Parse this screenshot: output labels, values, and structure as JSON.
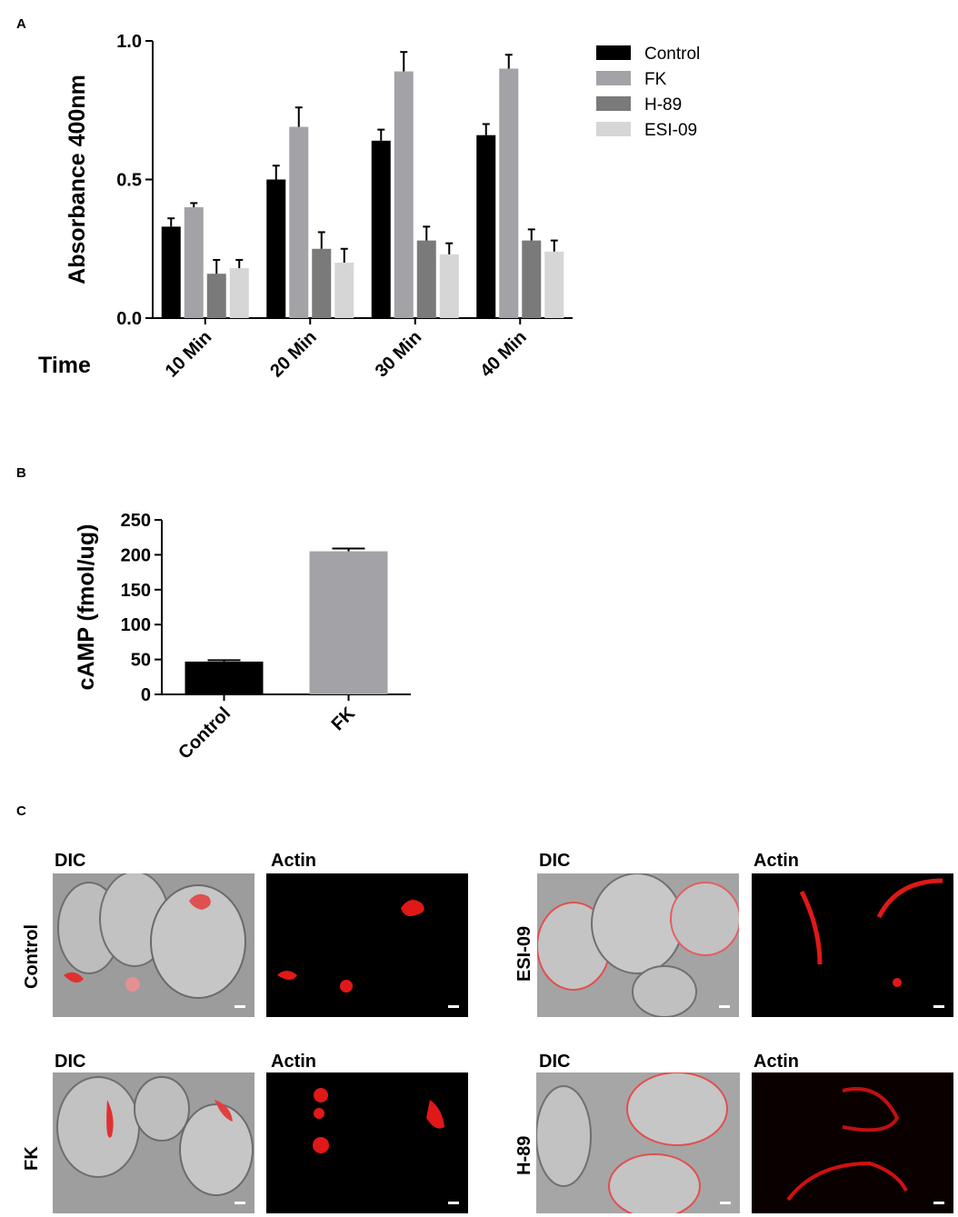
{
  "panels": {
    "a": "A",
    "b": "B",
    "c": "C"
  },
  "chart_data": [
    {
      "type": "bar",
      "panel": "A",
      "ylabel": "Absorbance 400nm",
      "xlabel": "Time",
      "categories": [
        "10 Min",
        "20 Min",
        "30 Min",
        "40 Min"
      ],
      "ylim": [
        0,
        1.0
      ],
      "yticks": [
        "0.0",
        "0.5",
        "1.0"
      ],
      "legend_position": "top-right",
      "series": [
        {
          "name": "Control",
          "color": "#000000",
          "values": [
            0.33,
            0.5,
            0.64,
            0.66
          ],
          "errors": [
            0.03,
            0.05,
            0.04,
            0.04
          ]
        },
        {
          "name": "FK",
          "color": "#a3a3a7",
          "values": [
            0.4,
            0.69,
            0.89,
            0.9
          ],
          "errors": [
            0.015,
            0.07,
            0.07,
            0.05
          ]
        },
        {
          "name": "H-89",
          "color": "#7a7a7a",
          "values": [
            0.16,
            0.25,
            0.28,
            0.28
          ],
          "errors": [
            0.05,
            0.06,
            0.05,
            0.04
          ]
        },
        {
          "name": "ESI-09",
          "color": "#d6d6d6",
          "values": [
            0.18,
            0.2,
            0.23,
            0.24
          ],
          "errors": [
            0.03,
            0.05,
            0.04,
            0.04
          ]
        }
      ]
    },
    {
      "type": "bar",
      "panel": "B",
      "ylabel": "cAMP  (fmol/ug)",
      "categories": [
        "Control",
        "FK"
      ],
      "values": [
        47,
        205
      ],
      "errors": [
        2,
        4
      ],
      "colors": [
        "#000000",
        "#a3a3a7"
      ],
      "ylim": [
        0,
        250
      ],
      "yticks": [
        "0",
        "50",
        "100",
        "150",
        "200",
        "250"
      ]
    }
  ],
  "panel_c": {
    "column_labels": {
      "dic": "DIC",
      "actin": "Actin"
    },
    "rows": [
      {
        "label": "Control"
      },
      {
        "label": "FK"
      },
      {
        "label": "ESI-09"
      },
      {
        "label": "H-89"
      }
    ]
  }
}
